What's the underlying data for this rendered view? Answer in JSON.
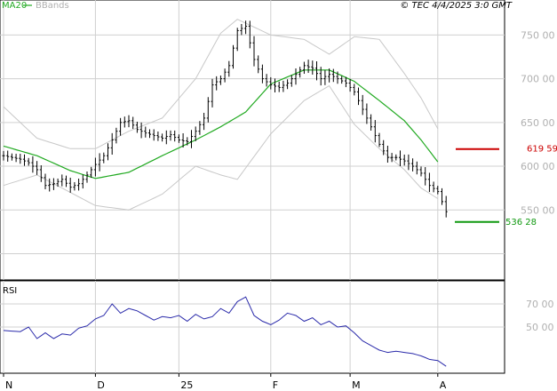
{
  "header": {
    "legend_ma": "MA20",
    "legend_bb": "BBands",
    "copyright": "© TEC 4/4/2025 3:0 GMT"
  },
  "colors": {
    "ma": "#22aa22",
    "bbands": "#c8c8c8",
    "price": "#000000",
    "rsi": "#2a2aaa",
    "resistance": "#cc0000",
    "support": "#119911",
    "grid": "#d0d0d0"
  },
  "chart_data": [
    {
      "type": "line",
      "title": "",
      "ylim": [
        470,
        790
      ],
      "y_ticks": [
        {
          "value": 750,
          "label": "750 00"
        },
        {
          "value": 700,
          "label": "700 00"
        },
        {
          "value": 650,
          "label": "650 00"
        },
        {
          "value": 600,
          "label": "600 00"
        },
        {
          "value": 550,
          "label": "550 00"
        }
      ],
      "x_ticks": [
        {
          "index": 0,
          "label": "N"
        },
        {
          "index": 22,
          "label": "D"
        },
        {
          "index": 42,
          "label": "25"
        },
        {
          "index": 64,
          "label": "F"
        },
        {
          "index": 83,
          "label": "M"
        },
        {
          "index": 104,
          "label": "A"
        }
      ],
      "x_count": 108,
      "series": [
        {
          "name": "MA20",
          "x": [
            0,
            8,
            16,
            22,
            30,
            38,
            46,
            52,
            58,
            64,
            72,
            78,
            84,
            90,
            96,
            100,
            104
          ],
          "values": [
            623,
            612,
            595,
            586,
            593,
            612,
            630,
            645,
            662,
            694,
            710,
            710,
            697,
            675,
            652,
            630,
            605
          ]
        },
        {
          "name": "BBands upper",
          "x": [
            0,
            8,
            16,
            22,
            30,
            38,
            46,
            52,
            56,
            64,
            72,
            78,
            84,
            90,
            96,
            100,
            104
          ],
          "values": [
            668,
            632,
            620,
            620,
            640,
            655,
            700,
            752,
            768,
            750,
            745,
            728,
            748,
            745,
            706,
            678,
            643
          ]
        },
        {
          "name": "BBands lower",
          "x": [
            0,
            8,
            16,
            22,
            30,
            38,
            46,
            52,
            56,
            64,
            72,
            78,
            84,
            90,
            96,
            100,
            104
          ],
          "values": [
            578,
            590,
            570,
            555,
            550,
            568,
            600,
            590,
            585,
            637,
            675,
            692,
            648,
            620,
            596,
            575,
            563
          ]
        }
      ],
      "price_points": [
        [
          0,
          612
        ],
        [
          2,
          610
        ],
        [
          4,
          608
        ],
        [
          6,
          604
        ],
        [
          8,
          596
        ],
        [
          10,
          578
        ],
        [
          12,
          580
        ],
        [
          14,
          585
        ],
        [
          16,
          576
        ],
        [
          18,
          580
        ],
        [
          20,
          590
        ],
        [
          22,
          602
        ],
        [
          24,
          612
        ],
        [
          26,
          630
        ],
        [
          28,
          650
        ],
        [
          30,
          652
        ],
        [
          32,
          642
        ],
        [
          34,
          638
        ],
        [
          36,
          635
        ],
        [
          38,
          632
        ],
        [
          40,
          636
        ],
        [
          42,
          630
        ],
        [
          44,
          628
        ],
        [
          46,
          640
        ],
        [
          48,
          655
        ],
        [
          50,
          693
        ],
        [
          52,
          700
        ],
        [
          54,
          715
        ],
        [
          56,
          755
        ],
        [
          58,
          760
        ],
        [
          60,
          722
        ],
        [
          62,
          700
        ],
        [
          64,
          693
        ],
        [
          66,
          690
        ],
        [
          68,
          695
        ],
        [
          70,
          705
        ],
        [
          72,
          715
        ],
        [
          74,
          712
        ],
        [
          76,
          700
        ],
        [
          78,
          705
        ],
        [
          80,
          700
        ],
        [
          82,
          695
        ],
        [
          84,
          685
        ],
        [
          86,
          665
        ],
        [
          88,
          645
        ],
        [
          90,
          625
        ],
        [
          92,
          610
        ],
        [
          94,
          610
        ],
        [
          96,
          606
        ],
        [
          98,
          600
        ],
        [
          100,
          592
        ],
        [
          102,
          578
        ],
        [
          104,
          571
        ],
        [
          106,
          548
        ]
      ],
      "annotations": [
        {
          "label": "619 59",
          "value": 619.59,
          "color": "#cc0000"
        },
        {
          "label": "536 28",
          "value": 536.28,
          "color": "#119911"
        }
      ]
    },
    {
      "type": "line",
      "title": "RSI",
      "ylim": [
        10,
        90
      ],
      "y_ticks": [
        {
          "value": 70,
          "label": "70 00"
        },
        {
          "value": 50,
          "label": "50 00"
        }
      ],
      "series": [
        {
          "name": "RSI",
          "x": [
            0,
            4,
            6,
            8,
            10,
            12,
            14,
            16,
            18,
            20,
            22,
            24,
            26,
            28,
            30,
            32,
            34,
            36,
            38,
            40,
            42,
            44,
            46,
            48,
            50,
            52,
            54,
            56,
            58,
            60,
            62,
            64,
            66,
            68,
            70,
            72,
            74,
            76,
            78,
            80,
            82,
            84,
            86,
            88,
            90,
            92,
            94,
            96,
            98,
            100,
            102,
            104,
            106
          ],
          "values": [
            47,
            46,
            50,
            40,
            45,
            40,
            44,
            43,
            49,
            51,
            57,
            60,
            70,
            62,
            66,
            64,
            60,
            56,
            59,
            58,
            60,
            55,
            61,
            57,
            59,
            66,
            62,
            72,
            76,
            60,
            55,
            52,
            56,
            62,
            60,
            55,
            58,
            52,
            55,
            50,
            51,
            45,
            38,
            34,
            30,
            28,
            29,
            28,
            27,
            25,
            22,
            21,
            16
          ]
        }
      ]
    }
  ]
}
